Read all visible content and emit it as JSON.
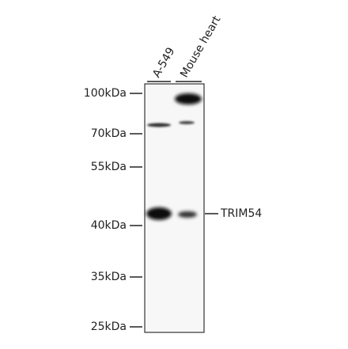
{
  "lanes": [
    "A-549",
    "Mouse heart"
  ],
  "markers": [
    "100kDa",
    "70kDa",
    "55kDa",
    "40kDa",
    "35kDa",
    "25kDa"
  ],
  "band_label": "TRIM54"
}
